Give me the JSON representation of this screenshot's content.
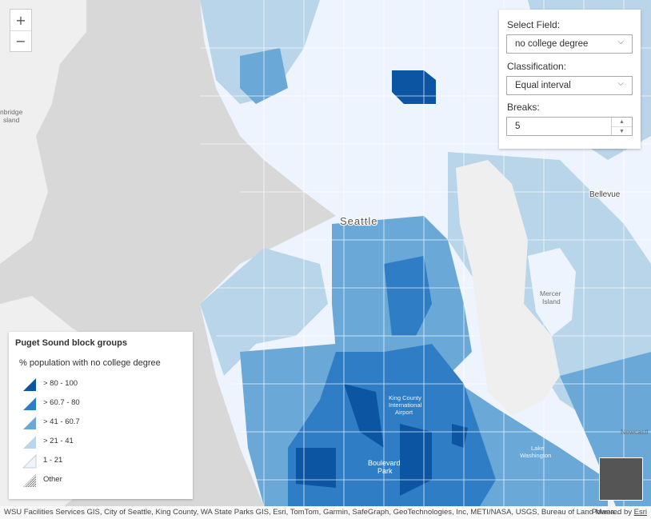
{
  "colors": {
    "water": "#d8d8d8",
    "land": "#efefef",
    "class1": "#eef4fd",
    "class2": "#b9d5ea",
    "class3": "#6aa8d8",
    "class4": "#2f7dc4",
    "class5": "#0c55a3",
    "road": "#ffffff"
  },
  "zoom": {
    "in_label": "+",
    "out_label": "−"
  },
  "panel": {
    "field_label": "Select Field:",
    "field_value": "no college degree",
    "class_label": "Classification:",
    "class_value": "Equal interval",
    "breaks_label": "Breaks:",
    "breaks_value": "5",
    "chevron": "⌵"
  },
  "legend": {
    "title": "Puget Sound block groups",
    "field": "% population with no college degree",
    "items": [
      {
        "label": "> 80 - 100",
        "color": "#0c55a3"
      },
      {
        "label": "> 60.7 - 80",
        "color": "#2f7dc4"
      },
      {
        "label": "> 41 - 60.7",
        "color": "#6aa8d8"
      },
      {
        "label": "> 21 - 41",
        "color": "#b9d5ea"
      },
      {
        "label": "1 - 21",
        "color": "#eef4fd"
      },
      {
        "label": "Other",
        "color": "#999999"
      }
    ]
  },
  "places": {
    "bainbridge1": "nbridge",
    "bainbridge2": "sland",
    "seattle": "Seattle",
    "bellevue": "Bellevue",
    "mercer1": "Mercer",
    "mercer2": "Island",
    "airport1": "King County",
    "airport2": "International",
    "airport3": "Airport",
    "boulevard1": "Boulevard",
    "boulevard2": "Park",
    "lake1": "Lake",
    "lake2": "Washington",
    "newcastle": "Newcastl"
  },
  "attribution": {
    "sources": "WSU Facilities Services GIS, City of Seattle, King County, WA State Parks GIS, Esri, TomTom, Garmin, SafeGraph, GeoTechnologies, Inc, METI/NASA, USGS, Bureau of Land Mana...",
    "powered": "Powered by",
    "esri": "Esri"
  }
}
